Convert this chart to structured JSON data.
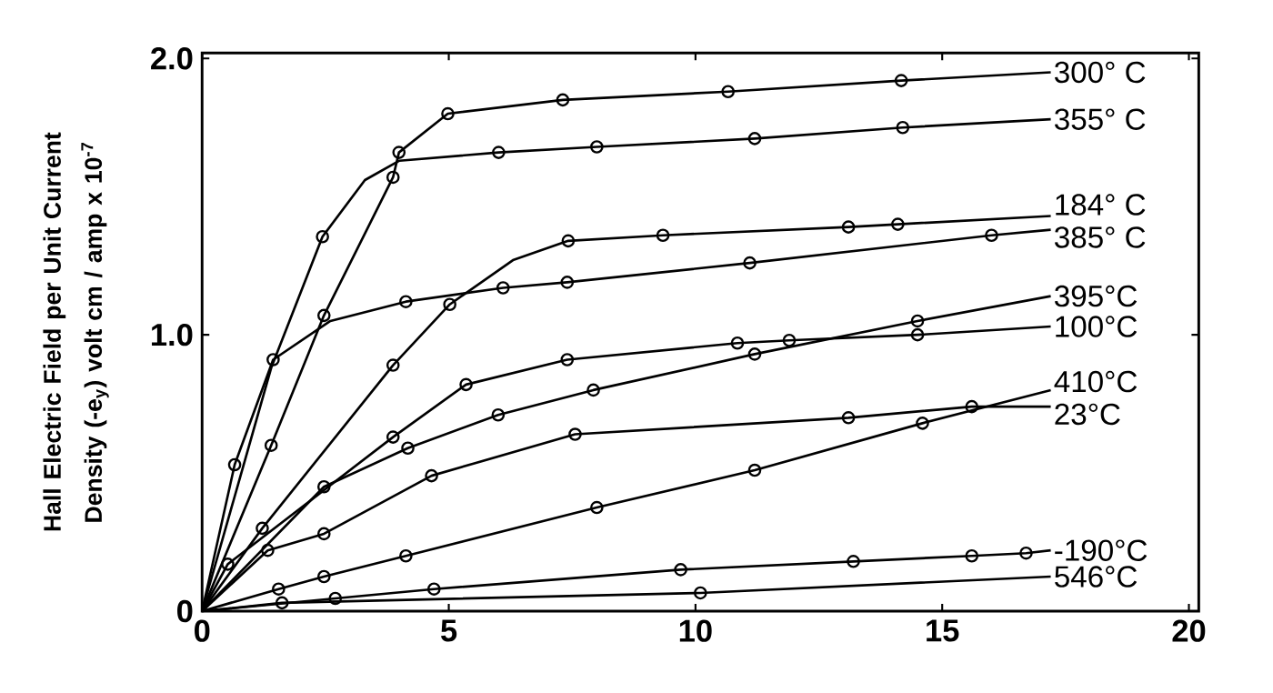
{
  "chart_data": {
    "type": "line",
    "ylabel": "Hall Electric Field per Unit Current Density (-e$_{y}$) volt cm / amp x 10$^{-7}$",
    "xlim": [
      0,
      20.2
    ],
    "ylim": [
      0,
      2.02
    ],
    "xticks": [
      0,
      5,
      10,
      15,
      20
    ],
    "yticks": [
      0,
      {
        "value": 1,
        "label": "1.0"
      },
      {
        "value": 2,
        "label": "2.0"
      }
    ],
    "grid": false,
    "legend": "right",
    "marker": "none",
    "series": [
      {
        "name": "300° C",
        "color": "#000000",
        "x": [
          0,
          1.4,
          2.47,
          3.87,
          3.99,
          4.98,
          7.31,
          10.66,
          14.17,
          17.2
        ],
        "values": [
          0,
          0.6,
          1.07,
          1.57,
          1.66,
          1.8,
          1.85,
          1.88,
          1.92,
          1.95
        ]
      },
      {
        "type": "scatter",
        "marker": "circle",
        "color": "#000000",
        "x": [
          1.4,
          2.47,
          3.87,
          3.99,
          4.98,
          7.31,
          10.66,
          14.17
        ],
        "values": [
          0.6,
          1.07,
          1.57,
          1.66,
          1.8,
          1.85,
          1.88,
          1.92
        ]
      },
      {
        "name": "355° C",
        "color": "#000000",
        "x": [
          0,
          1.4,
          2.44,
          3.3,
          4.0,
          6.01,
          8.0,
          11.2,
          14.2,
          17.2
        ],
        "values": [
          0,
          0.88,
          1.355,
          1.56,
          1.63,
          1.66,
          1.68,
          1.71,
          1.75,
          1.78
        ]
      },
      {
        "type": "scatter",
        "marker": "circle",
        "color": "#000000",
        "x": [
          2.44,
          6.01,
          8.0,
          11.2,
          14.2
        ],
        "values": [
          1.355,
          1.66,
          1.68,
          1.71,
          1.75
        ]
      },
      {
        "name": "184° C",
        "color": "#000000",
        "x": [
          0,
          1.22,
          3.87,
          5.02,
          6.3,
          7.42,
          9.34,
          13.1,
          14.1,
          17.2
        ],
        "values": [
          0,
          0.3,
          0.89,
          1.11,
          1.27,
          1.34,
          1.36,
          1.39,
          1.4,
          1.43
        ]
      },
      {
        "type": "scatter",
        "marker": "circle",
        "color": "#000000",
        "x": [
          1.22,
          3.87,
          5.02,
          7.42,
          9.34,
          13.1,
          14.1
        ],
        "values": [
          0.3,
          0.89,
          1.11,
          1.34,
          1.36,
          1.39,
          1.4
        ]
      },
      {
        "name": "385° C",
        "color": "#000000",
        "x": [
          0,
          0.66,
          1.44,
          2.6,
          4.13,
          6.1,
          7.4,
          11.1,
          16.0,
          17.2
        ],
        "values": [
          0,
          0.53,
          0.91,
          1.05,
          1.12,
          1.17,
          1.19,
          1.26,
          1.36,
          1.38
        ]
      },
      {
        "type": "scatter",
        "marker": "circle",
        "color": "#000000",
        "x": [
          0.66,
          1.44,
          4.13,
          6.1,
          7.4,
          11.1,
          16.0
        ],
        "values": [
          0.53,
          0.91,
          1.12,
          1.17,
          1.19,
          1.26,
          1.36
        ]
      },
      {
        "name": "395°C",
        "color": "#000000",
        "x": [
          0,
          2.47,
          4.17,
          6.0,
          7.93,
          11.2,
          14.5,
          17.2
        ],
        "values": [
          0,
          0.45,
          0.59,
          0.71,
          0.8,
          0.93,
          1.05,
          1.14
        ]
      },
      {
        "type": "scatter",
        "marker": "circle",
        "color": "#000000",
        "x": [
          2.47,
          4.17,
          6.0,
          7.93,
          11.2,
          14.5
        ],
        "values": [
          0.45,
          0.59,
          0.71,
          0.8,
          0.93,
          1.05
        ]
      },
      {
        "name": "100°C",
        "color": "#000000",
        "x": [
          0,
          0.52,
          3.87,
          5.35,
          7.4,
          10.85,
          11.9,
          14.5,
          17.2
        ],
        "values": [
          0,
          0.17,
          0.63,
          0.82,
          0.91,
          0.97,
          0.98,
          1.0,
          1.03
        ]
      },
      {
        "type": "scatter",
        "marker": "circle",
        "color": "#000000",
        "x": [
          0.52,
          3.87,
          5.35,
          7.4,
          10.85,
          11.9,
          14.5
        ],
        "values": [
          0.17,
          0.63,
          0.82,
          0.91,
          0.97,
          0.98,
          1.0
        ]
      },
      {
        "name": "410°C",
        "color": "#000000",
        "x": [
          0,
          1.55,
          2.47,
          4.13,
          8.0,
          11.2,
          14.6,
          17.2
        ],
        "values": [
          0,
          0.08,
          0.125,
          0.2,
          0.375,
          0.51,
          0.68,
          0.8
        ]
      },
      {
        "type": "scatter",
        "marker": "circle",
        "color": "#000000",
        "x": [
          1.55,
          2.47,
          4.13,
          8.0,
          11.2,
          14.6
        ],
        "values": [
          0.08,
          0.125,
          0.2,
          0.375,
          0.51,
          0.68
        ]
      },
      {
        "name": "23°C",
        "color": "#000000",
        "x": [
          0,
          1.33,
          2.47,
          4.65,
          7.56,
          13.1,
          15.6,
          17.2
        ],
        "values": [
          0,
          0.22,
          0.28,
          0.49,
          0.64,
          0.7,
          0.74,
          0.74
        ]
      },
      {
        "type": "scatter",
        "marker": "circle",
        "color": "#000000",
        "x": [
          1.33,
          2.47,
          4.65,
          7.56,
          13.1,
          15.6
        ],
        "values": [
          0.22,
          0.28,
          0.49,
          0.64,
          0.7,
          0.74
        ]
      },
      {
        "name": "-190°C",
        "color": "#000000",
        "x": [
          0,
          2.7,
          4.7,
          9.7,
          13.2,
          15.6,
          16.7,
          17.2
        ],
        "values": [
          0,
          0.046,
          0.08,
          0.15,
          0.18,
          0.2,
          0.21,
          0.22
        ]
      },
      {
        "type": "scatter",
        "marker": "circle",
        "color": "#000000",
        "x": [
          2.7,
          4.7,
          9.7,
          13.2,
          15.6,
          16.7
        ],
        "values": [
          0.046,
          0.08,
          0.15,
          0.18,
          0.2,
          0.21
        ]
      },
      {
        "name": "546°C",
        "color": "#000000",
        "x": [
          0,
          1.62,
          10.1,
          17.2
        ],
        "values": [
          0,
          0.03,
          0.066,
          0.125
        ]
      },
      {
        "type": "scatter",
        "marker": "circle",
        "color": "#000000",
        "x": [
          1.62,
          10.1
        ],
        "values": [
          0.03,
          0.066
        ]
      }
    ]
  }
}
